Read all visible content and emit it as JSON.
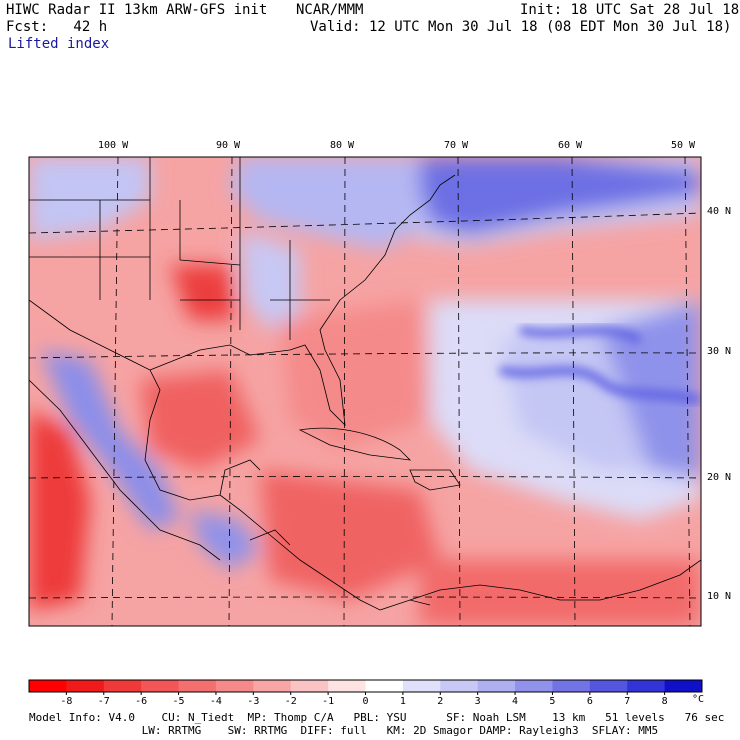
{
  "header": {
    "title": "HIWC Radar II 13km ARW-GFS init",
    "center": "NCAR/MMM",
    "init": "Init: 18 UTC Sat 28 Jul 18",
    "fcst": "Fcst:   42 h",
    "valid": "Valid: 12 UTC Mon 30 Jul 18 (08 EDT Mon 30 Jul 18)",
    "field": "Lifted index"
  },
  "axes": {
    "lon_labels": [
      "100 W",
      "90 W",
      "80 W",
      "70 W",
      "60 W",
      "50 W"
    ],
    "lat_labels": [
      "40 N",
      "30 N",
      "20 N",
      "10 N"
    ]
  },
  "colorbar": {
    "ticks": [
      "-8",
      "-7",
      "-6",
      "-5",
      "-4",
      "-3",
      "-2",
      "-1",
      "0",
      "1",
      "2",
      "3",
      "4",
      "5",
      "6",
      "7",
      "8"
    ],
    "unit": "°C",
    "colors": [
      "#ff0000",
      "#f01a1a",
      "#f03a3a",
      "#f25656",
      "#f47070",
      "#f68a8a",
      "#f8a5a5",
      "#fbc4c4",
      "#ffe2e2",
      "#ffffff",
      "#e0e0fb",
      "#c8c8f6",
      "#aeb0f1",
      "#9092ec",
      "#7274e6",
      "#5456e0",
      "#3234d8",
      "#1010c8"
    ]
  },
  "footer": {
    "line1": "Model Info: V4.0    CU: N_Tiedt  MP: Thomp C/A   PBL: YSU      SF: Noah LSM    13 km   51 levels   76 sec",
    "line2": "                 LW: RRTMG    SW: RRTMG  DIFF: full   KM: 2D Smagor DAMP: Rayleigh3  SFLAY: MM5"
  }
}
